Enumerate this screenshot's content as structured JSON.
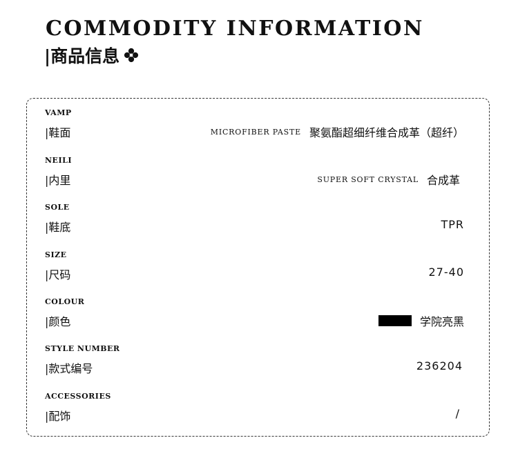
{
  "header": {
    "title_en": "COMMODITY INFORMATION",
    "title_cn": "|商品信息",
    "ornament_icon": "four-petal-flower-icon"
  },
  "rows": [
    {
      "label_en": "VAMP",
      "label_cn": "|鞋面",
      "value_en": "MICROFIBER PASTE",
      "value": "聚氨酯超细纤维合成革（超纤）"
    },
    {
      "label_en": "NEILI",
      "label_cn": "|内里",
      "value_en": "SUPER SOFT CRYSTAL",
      "value": "合成革"
    },
    {
      "label_en": "SOLE",
      "label_cn": "|鞋底",
      "value": "TPR"
    },
    {
      "label_en": "SIZE",
      "label_cn": "|尺码",
      "value": "27-40"
    },
    {
      "label_en": "COLOUR",
      "label_cn": "|颜色",
      "value": "学院亮黑",
      "swatch_color": "#000000"
    },
    {
      "label_en": "STYLE NUMBER",
      "label_cn": "|款式编号",
      "value": "236204"
    },
    {
      "label_en": "ACCESSORIES",
      "label_cn": "|配饰",
      "value": "/"
    }
  ]
}
